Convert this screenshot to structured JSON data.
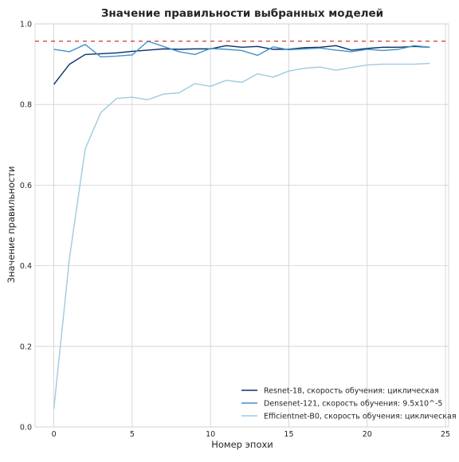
{
  "chart_data": {
    "type": "line",
    "title": "Значение правильности выбранных моделей",
    "xlabel": "Номер эпохи",
    "ylabel": "Значение правильности",
    "xlim": [
      -1.2,
      25.2
    ],
    "ylim": [
      0.0,
      1.0
    ],
    "xticks": [
      0,
      5,
      10,
      15,
      20,
      25
    ],
    "xtick_labels": [
      "0",
      "5",
      "10",
      "15",
      "20",
      "25"
    ],
    "yticks": [
      0.0,
      0.2,
      0.4,
      0.6,
      0.8,
      1.0
    ],
    "ytick_labels": [
      "0.0",
      "0.2",
      "0.4",
      "0.6",
      "0.8",
      "1.0"
    ],
    "grid": true,
    "legend_position": "bottom-right",
    "x": [
      0,
      1,
      2,
      3,
      4,
      5,
      6,
      7,
      8,
      9,
      10,
      11,
      12,
      13,
      14,
      15,
      16,
      17,
      18,
      19,
      20,
      21,
      22,
      23,
      24
    ],
    "series": [
      {
        "name": "Resnet-18, скорость обучения: циклическая",
        "color": "#08306b",
        "values": [
          0.85,
          0.9,
          0.924,
          0.926,
          0.928,
          0.932,
          0.935,
          0.938,
          0.937,
          0.938,
          0.938,
          0.946,
          0.942,
          0.944,
          0.937,
          0.937,
          0.941,
          0.942,
          0.946,
          0.935,
          0.939,
          0.942,
          0.942,
          0.944,
          0.942
        ]
      },
      {
        "name": "Densenet-121, скорость обучения: 9.5x10^-5",
        "color": "#4292c6",
        "values": [
          0.937,
          0.931,
          0.949,
          0.918,
          0.92,
          0.923,
          0.957,
          0.944,
          0.931,
          0.924,
          0.939,
          0.937,
          0.934,
          0.922,
          0.943,
          0.936,
          0.938,
          0.94,
          0.935,
          0.931,
          0.937,
          0.934,
          0.937,
          0.946,
          0.942
        ]
      },
      {
        "name": "Efficientnet-B0, скорость обучения: циклическая",
        "color": "#9ecae1",
        "values": [
          0.045,
          0.42,
          0.69,
          0.78,
          0.815,
          0.818,
          0.812,
          0.826,
          0.829,
          0.852,
          0.845,
          0.86,
          0.855,
          0.876,
          0.868,
          0.883,
          0.89,
          0.893,
          0.885,
          0.892,
          0.898,
          0.9,
          0.9,
          0.9,
          0.902
        ]
      }
    ],
    "reference_line": {
      "y": 0.957,
      "color": "#cc0000",
      "style": "dashed"
    }
  }
}
